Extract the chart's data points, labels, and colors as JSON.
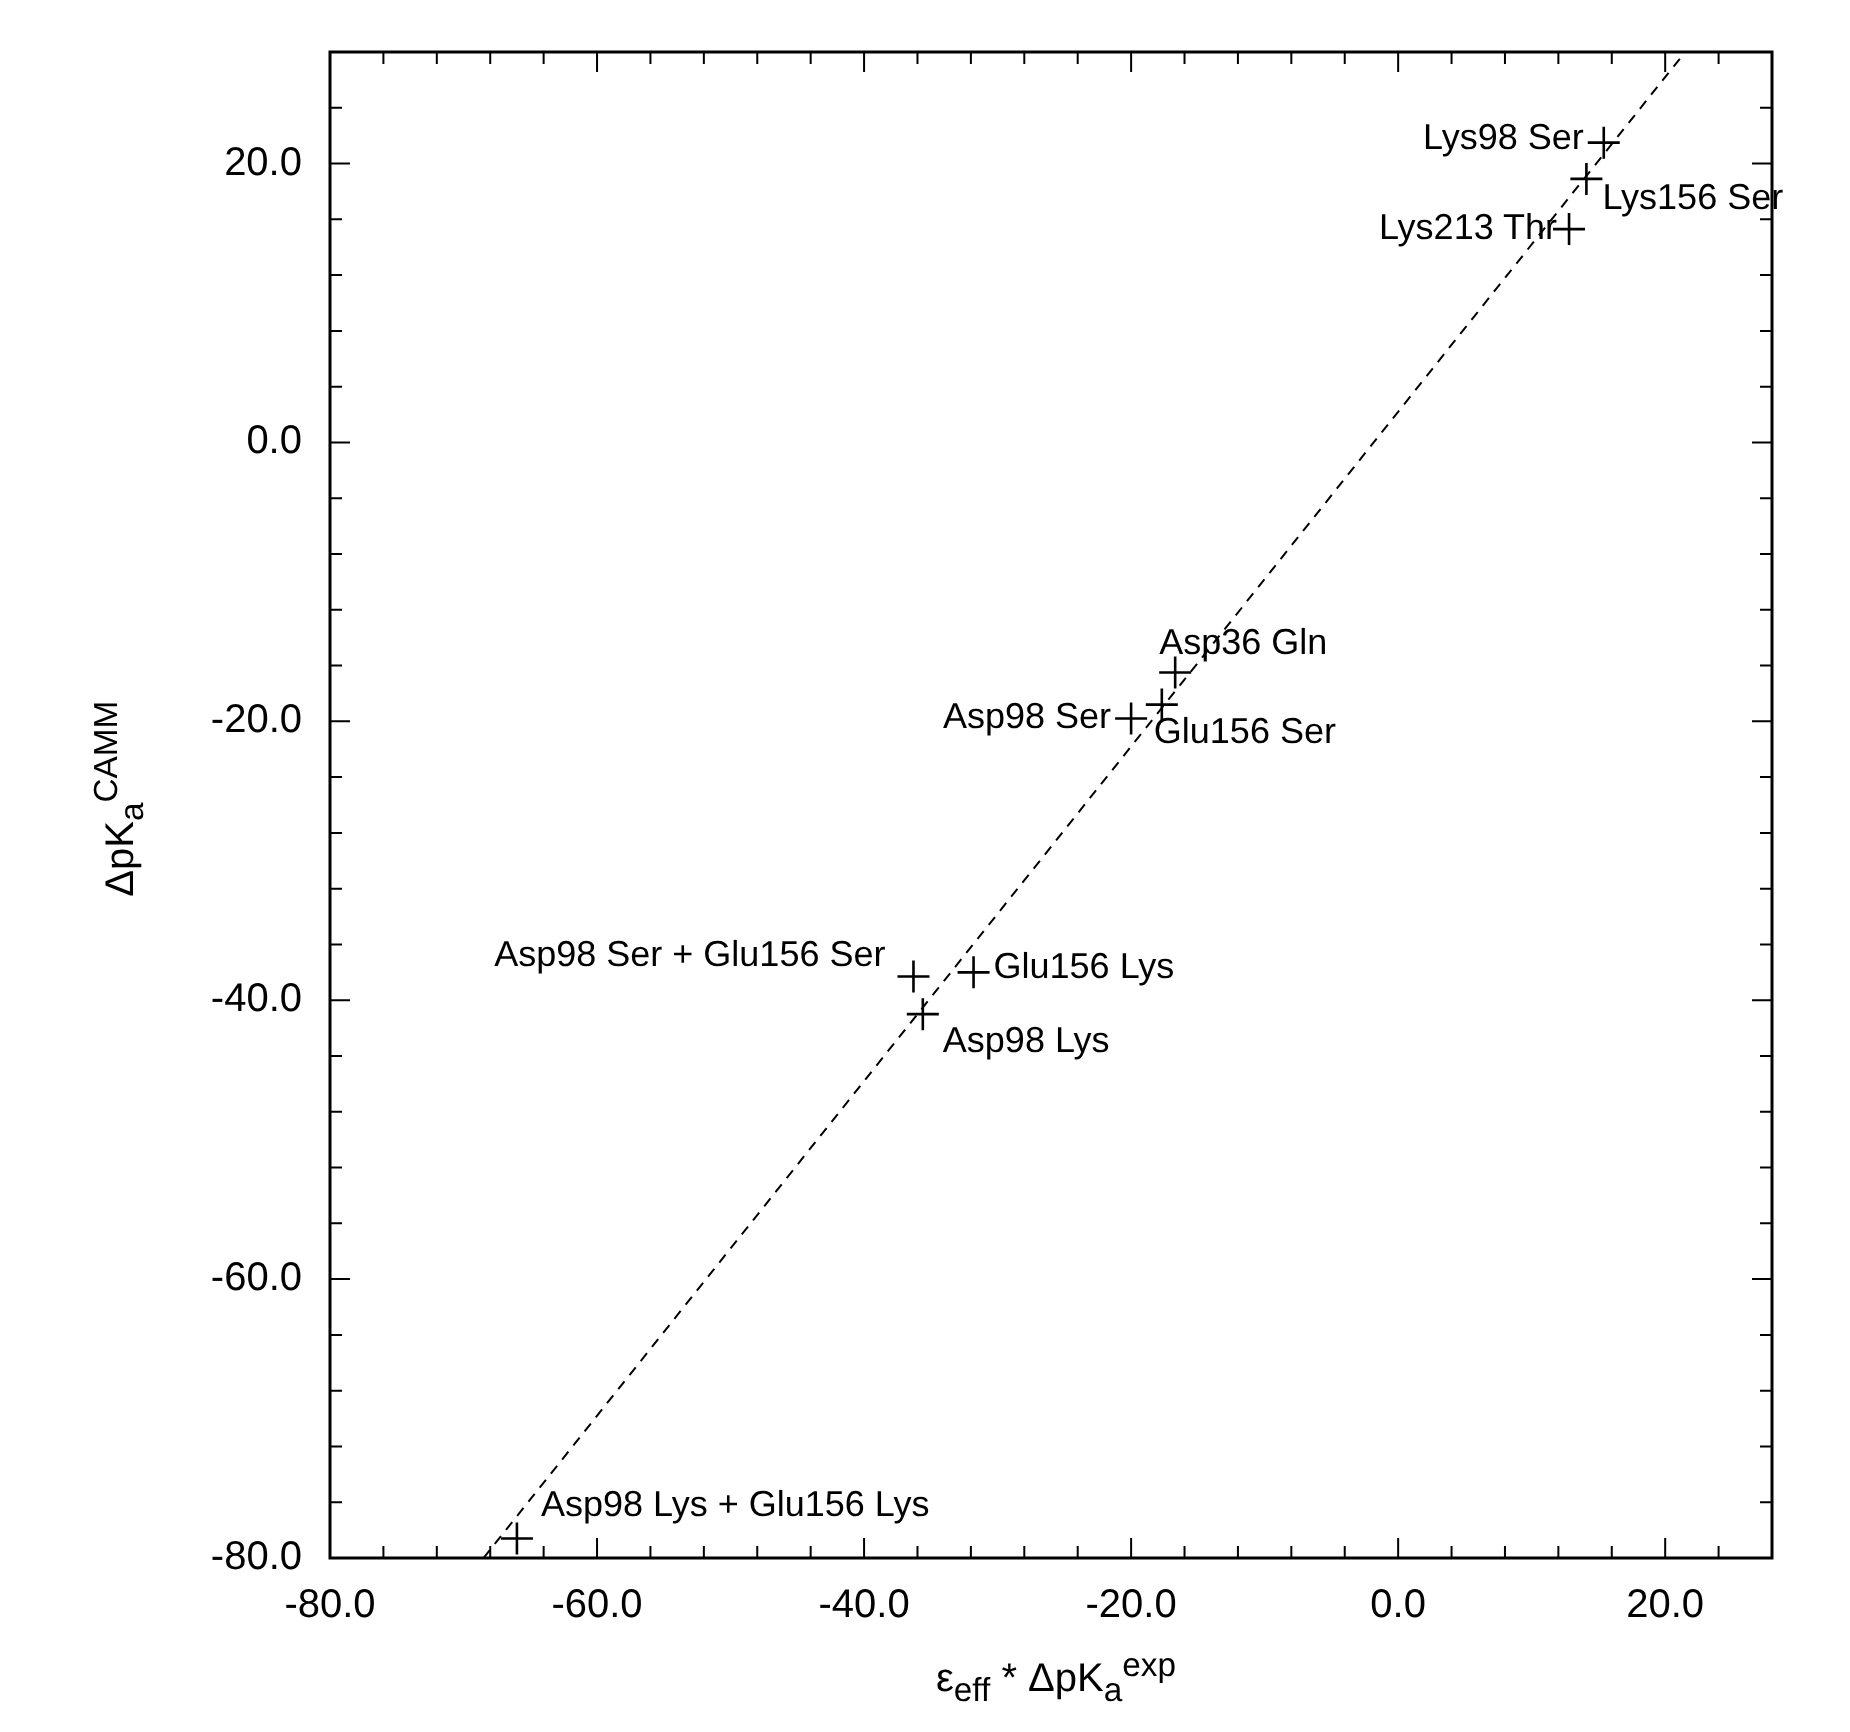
{
  "chart_data": {
    "type": "scatter",
    "xlabel": "ε$_{eff}$ * ΔpK$_{a}$$^{exp}$",
    "ylabel": "ΔpK$_{a}$$^{CAMM}$",
    "xlim": [
      -80,
      28
    ],
    "ylim": [
      -80,
      28
    ],
    "xticks": [
      {
        "value": -80,
        "label": "-80.0"
      },
      {
        "value": -76,
        "label": null
      },
      {
        "value": -72,
        "label": null
      },
      {
        "value": -68,
        "label": null
      },
      {
        "value": -64,
        "label": null
      },
      {
        "value": -60,
        "label": "-60.0"
      },
      {
        "value": -56,
        "label": null
      },
      {
        "value": -52,
        "label": null
      },
      {
        "value": -48,
        "label": null
      },
      {
        "value": -44,
        "label": null
      },
      {
        "value": -40,
        "label": "-40.0"
      },
      {
        "value": -36,
        "label": null
      },
      {
        "value": -32,
        "label": null
      },
      {
        "value": -28,
        "label": null
      },
      {
        "value": -24,
        "label": null
      },
      {
        "value": -20,
        "label": "-20.0"
      },
      {
        "value": -16,
        "label": null
      },
      {
        "value": -12,
        "label": null
      },
      {
        "value": -8,
        "label": null
      },
      {
        "value": -4,
        "label": null
      },
      {
        "value": 0,
        "label": "0.0"
      },
      {
        "value": 4,
        "label": null
      },
      {
        "value": 8,
        "label": null
      },
      {
        "value": 12,
        "label": null
      },
      {
        "value": 16,
        "label": null
      },
      {
        "value": 20,
        "label": "20.0"
      },
      {
        "value": 24,
        "label": null
      }
    ],
    "yticks": [
      {
        "value": -80,
        "label": "-80.0"
      },
      {
        "value": -76,
        "label": null
      },
      {
        "value": -72,
        "label": null
      },
      {
        "value": -68,
        "label": null
      },
      {
        "value": -64,
        "label": null
      },
      {
        "value": -60,
        "label": "-60.0"
      },
      {
        "value": -56,
        "label": null
      },
      {
        "value": -52,
        "label": null
      },
      {
        "value": -48,
        "label": null
      },
      {
        "value": -44,
        "label": null
      },
      {
        "value": -40,
        "label": "-40.0"
      },
      {
        "value": -36,
        "label": null
      },
      {
        "value": -32,
        "label": null
      },
      {
        "value": -28,
        "label": null
      },
      {
        "value": -24,
        "label": null
      },
      {
        "value": -20,
        "label": "-20.0"
      },
      {
        "value": -16,
        "label": null
      },
      {
        "value": -12,
        "label": null
      },
      {
        "value": -8,
        "label": null
      },
      {
        "value": -4,
        "label": null
      },
      {
        "value": 0,
        "label": "0.0"
      },
      {
        "value": 4,
        "label": null
      },
      {
        "value": 8,
        "label": null
      },
      {
        "value": 12,
        "label": null
      },
      {
        "value": 16,
        "label": null
      },
      {
        "value": 20,
        "label": "20.0"
      },
      {
        "value": 24,
        "label": null
      }
    ],
    "grid": false,
    "marker": "cross",
    "series": [
      {
        "color": "#000000",
        "x": [
          15.4,
          14.1,
          12.8,
          -16.7,
          -17.7,
          -20.0,
          -31.8,
          -36.3,
          -35.6,
          -66.0
        ],
        "values": [
          21.5,
          18.9,
          15.3,
          -16.5,
          -18.8,
          -19.8,
          -38.0,
          -38.3,
          -41.0,
          -78.6
        ]
      },
      {
        "type": "line",
        "color": "#000000",
        "line_style": "dashed",
        "marker": "none",
        "x": [
          -68.5,
          21.5
        ],
        "values": [
          -80,
          28
        ]
      }
    ],
    "annotations": [
      {
        "text": "Lys98 Ser",
        "x": 15.4,
        "y": 21.5
      },
      {
        "text": "Lys156 Ser",
        "x": 14.1,
        "y": 18.9
      },
      {
        "text": "Lys213 Thr",
        "x": 12.8,
        "y": 15.3
      },
      {
        "text": "Asp36 Gln",
        "x": -16.7,
        "y": -16.5
      },
      {
        "text": "Glu156 Ser",
        "x": -17.7,
        "y": -18.8
      },
      {
        "text": "Asp98 Ser",
        "x": -20.0,
        "y": -19.8
      },
      {
        "text": "Glu156 Lys",
        "x": -31.8,
        "y": -38.0
      },
      {
        "text": "Asp98 Ser + Glu156 Ser",
        "x": -36.3,
        "y": -38.3
      },
      {
        "text": "Asp98 Lys",
        "x": -35.6,
        "y": -41.0
      },
      {
        "text": "Asp98 Lys + Glu156 Lys",
        "x": -66.0,
        "y": -78.6
      }
    ]
  }
}
